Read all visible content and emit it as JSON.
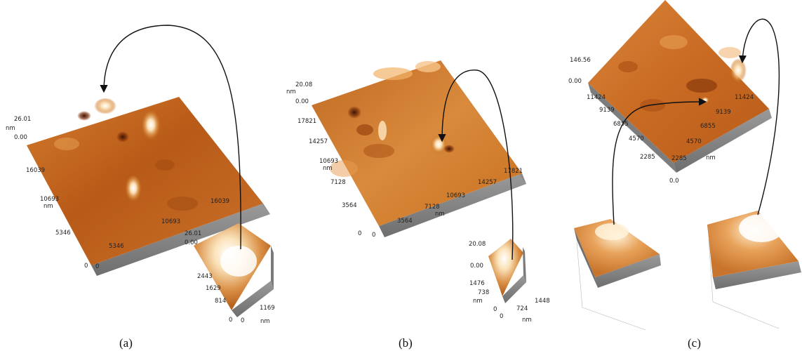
{
  "panels": [
    {
      "caption": "(a)",
      "main": {
        "z_max": "26.01",
        "z_min": "0.00",
        "z_unit": "nm",
        "x_ticks": [
          "0",
          "5346",
          "10693",
          "16039"
        ],
        "y_ticks": [
          "5346",
          "10693",
          "16039"
        ],
        "y_unit": "nm"
      },
      "inset": {
        "z_max": "26.01",
        "z_min": "0.00",
        "y_ticks": [
          "2443",
          "1629",
          "814",
          "0"
        ],
        "x_ticks": [
          "0",
          "1169"
        ],
        "unit": "nm"
      }
    },
    {
      "caption": "(b)",
      "main": {
        "z_max": "20.08",
        "z_min": "0.00",
        "z_unit": "nm",
        "y_ticks": [
          "17821",
          "14257",
          "10693",
          "7128",
          "3564",
          "0"
        ],
        "y_unit": "nm",
        "x_ticks": [
          "0",
          "3564",
          "7128",
          "10693",
          "14257",
          "17821"
        ],
        "x_unit": "nm"
      },
      "inset": {
        "z_max": "20.08",
        "z_min": "0.00",
        "y_ticks": [
          "1476",
          "738",
          "0"
        ],
        "x_ticks": [
          "0",
          "724",
          "1448"
        ],
        "unit": "nm"
      }
    },
    {
      "caption": "(c)",
      "main": {
        "z_max": "146.56",
        "z_min": "0.00",
        "y_ticks": [
          "11424",
          "9139",
          "6855",
          "4570",
          "2285",
          "0.0"
        ],
        "x_ticks": [
          "2285",
          "4570",
          "6855",
          "9139",
          "11424"
        ],
        "x_unit": "nm"
      }
    }
  ],
  "colors": {
    "surface_light": "#f6c27a",
    "surface_mid": "#c8641a",
    "surface_dark": "#7a2e08",
    "peak": "#fff6e4",
    "side_wall": "#8e8e8e",
    "arrow": "#111111"
  }
}
